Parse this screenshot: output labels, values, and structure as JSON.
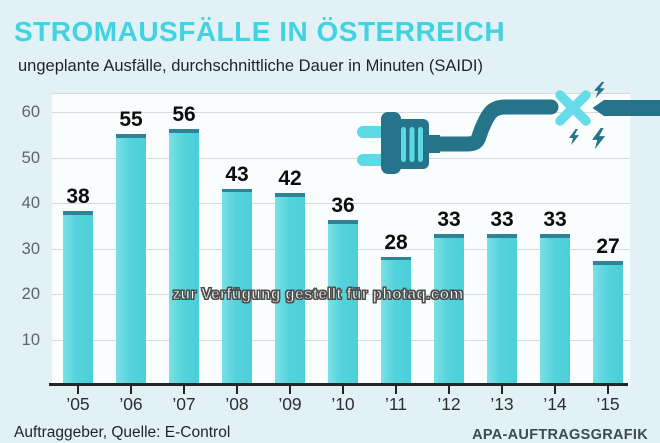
{
  "header": {
    "title": "STROMAUSFÄLLE IN ÖSTERREICH",
    "subtitle": "ungeplante Ausfälle, durchschnittliche Dauer in Minuten (SAIDI)"
  },
  "watermark": "zur Verfügung gestellt für photaq.com",
  "footer": {
    "source": "Auftraggeber, Quelle: E-Control",
    "credit": "APA-AUFTRAGSGRAFIK"
  },
  "colors": {
    "accent_cyan": "#41d3e1",
    "bar_fill": "#55d3dc",
    "bar_cap": "#2e8396",
    "illustration_dark_teal": "#26748a",
    "illustration_light_cyan": "#5cd9e4",
    "page_background": "#e2f1f6",
    "plot_background": "#fafdfe",
    "gridline": "#d7dbdd",
    "axis": "#252525"
  },
  "illustration": {
    "name": "broken-power-plug-with-lightning-bolts"
  },
  "chart_data": {
    "type": "bar",
    "title": "STROMAUSFÄLLE IN ÖSTERREICH",
    "subtitle": "ungeplante Ausfälle, durchschnittliche Dauer in Minuten (SAIDI)",
    "categories": [
      "’05",
      "’06",
      "’07",
      "’08",
      "’09",
      "’10",
      "’11",
      "’12",
      "’13",
      "’14",
      "’15"
    ],
    "values": [
      38,
      55,
      56,
      43,
      42,
      36,
      28,
      33,
      33,
      33,
      27
    ],
    "xlabel": "",
    "ylabel": "Minuten (SAIDI)",
    "ylim": [
      0,
      64
    ],
    "yticks": [
      10,
      20,
      30,
      40,
      50,
      60
    ],
    "grid": true,
    "legend": "none",
    "data_labels": true
  }
}
